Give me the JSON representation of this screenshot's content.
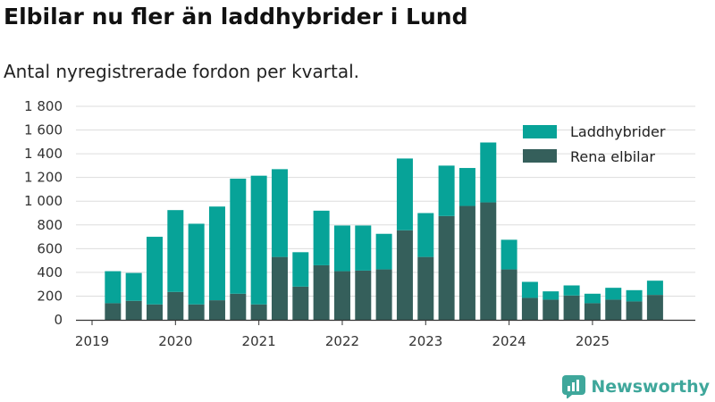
{
  "title": "Elbilar nu fler än laddhybrider i Lund",
  "subtitle": "Antal nyregistrerade fordon per kvartal.",
  "brand": "Newsworthy",
  "colors": {
    "hybrid": "#07a398",
    "electric": "#355f5b",
    "grid": "#dddddd",
    "brand": "#3fa79b"
  },
  "chart_data": {
    "type": "bar",
    "stacked": true,
    "title": "Elbilar nu fler än laddhybrider i Lund",
    "subtitle": "Antal nyregistrerade fordon per kvartal.",
    "xlabel": "",
    "ylabel": "",
    "ylim": [
      0,
      1800
    ],
    "yticks": [
      0,
      200,
      400,
      600,
      800,
      1000,
      1200,
      1400,
      1600,
      1800
    ],
    "ytick_labels": [
      "0",
      "200",
      "400",
      "600",
      "800",
      "1 000",
      "1 200",
      "1 400",
      "1 600",
      "1 800"
    ],
    "xtick_labels": [
      "2019",
      "2020",
      "2021",
      "2022",
      "2023",
      "2024",
      "2025"
    ],
    "legend_position": "top-right",
    "categories": [
      "2019 Q2",
      "2019 Q3",
      "2019 Q4",
      "2020 Q1",
      "2020 Q2",
      "2020 Q3",
      "2020 Q4",
      "2021 Q1",
      "2021 Q2",
      "2021 Q3",
      "2021 Q4",
      "2022 Q1",
      "2022 Q2",
      "2022 Q3",
      "2022 Q4",
      "2023 Q1",
      "2023 Q2",
      "2023 Q3",
      "2023 Q4",
      "2024 Q1",
      "2024 Q2",
      "2024 Q3",
      "2024 Q4",
      "2025 Q1",
      "2025 Q2",
      "2025 Q3",
      "2025 Q4"
    ],
    "series": [
      {
        "name": "Rena elbilar",
        "values": [
          140,
          160,
          130,
          235,
          130,
          165,
          220,
          130,
          530,
          280,
          460,
          410,
          415,
          425,
          755,
          530,
          875,
          960,
          990,
          425,
          185,
          170,
          205,
          140,
          170,
          155,
          210
        ]
      },
      {
        "name": "Laddhybrider",
        "values": [
          270,
          235,
          570,
          690,
          680,
          790,
          970,
          1085,
          740,
          290,
          460,
          385,
          380,
          300,
          605,
          370,
          425,
          320,
          505,
          250,
          135,
          70,
          85,
          80,
          100,
          95,
          120
        ]
      }
    ]
  }
}
